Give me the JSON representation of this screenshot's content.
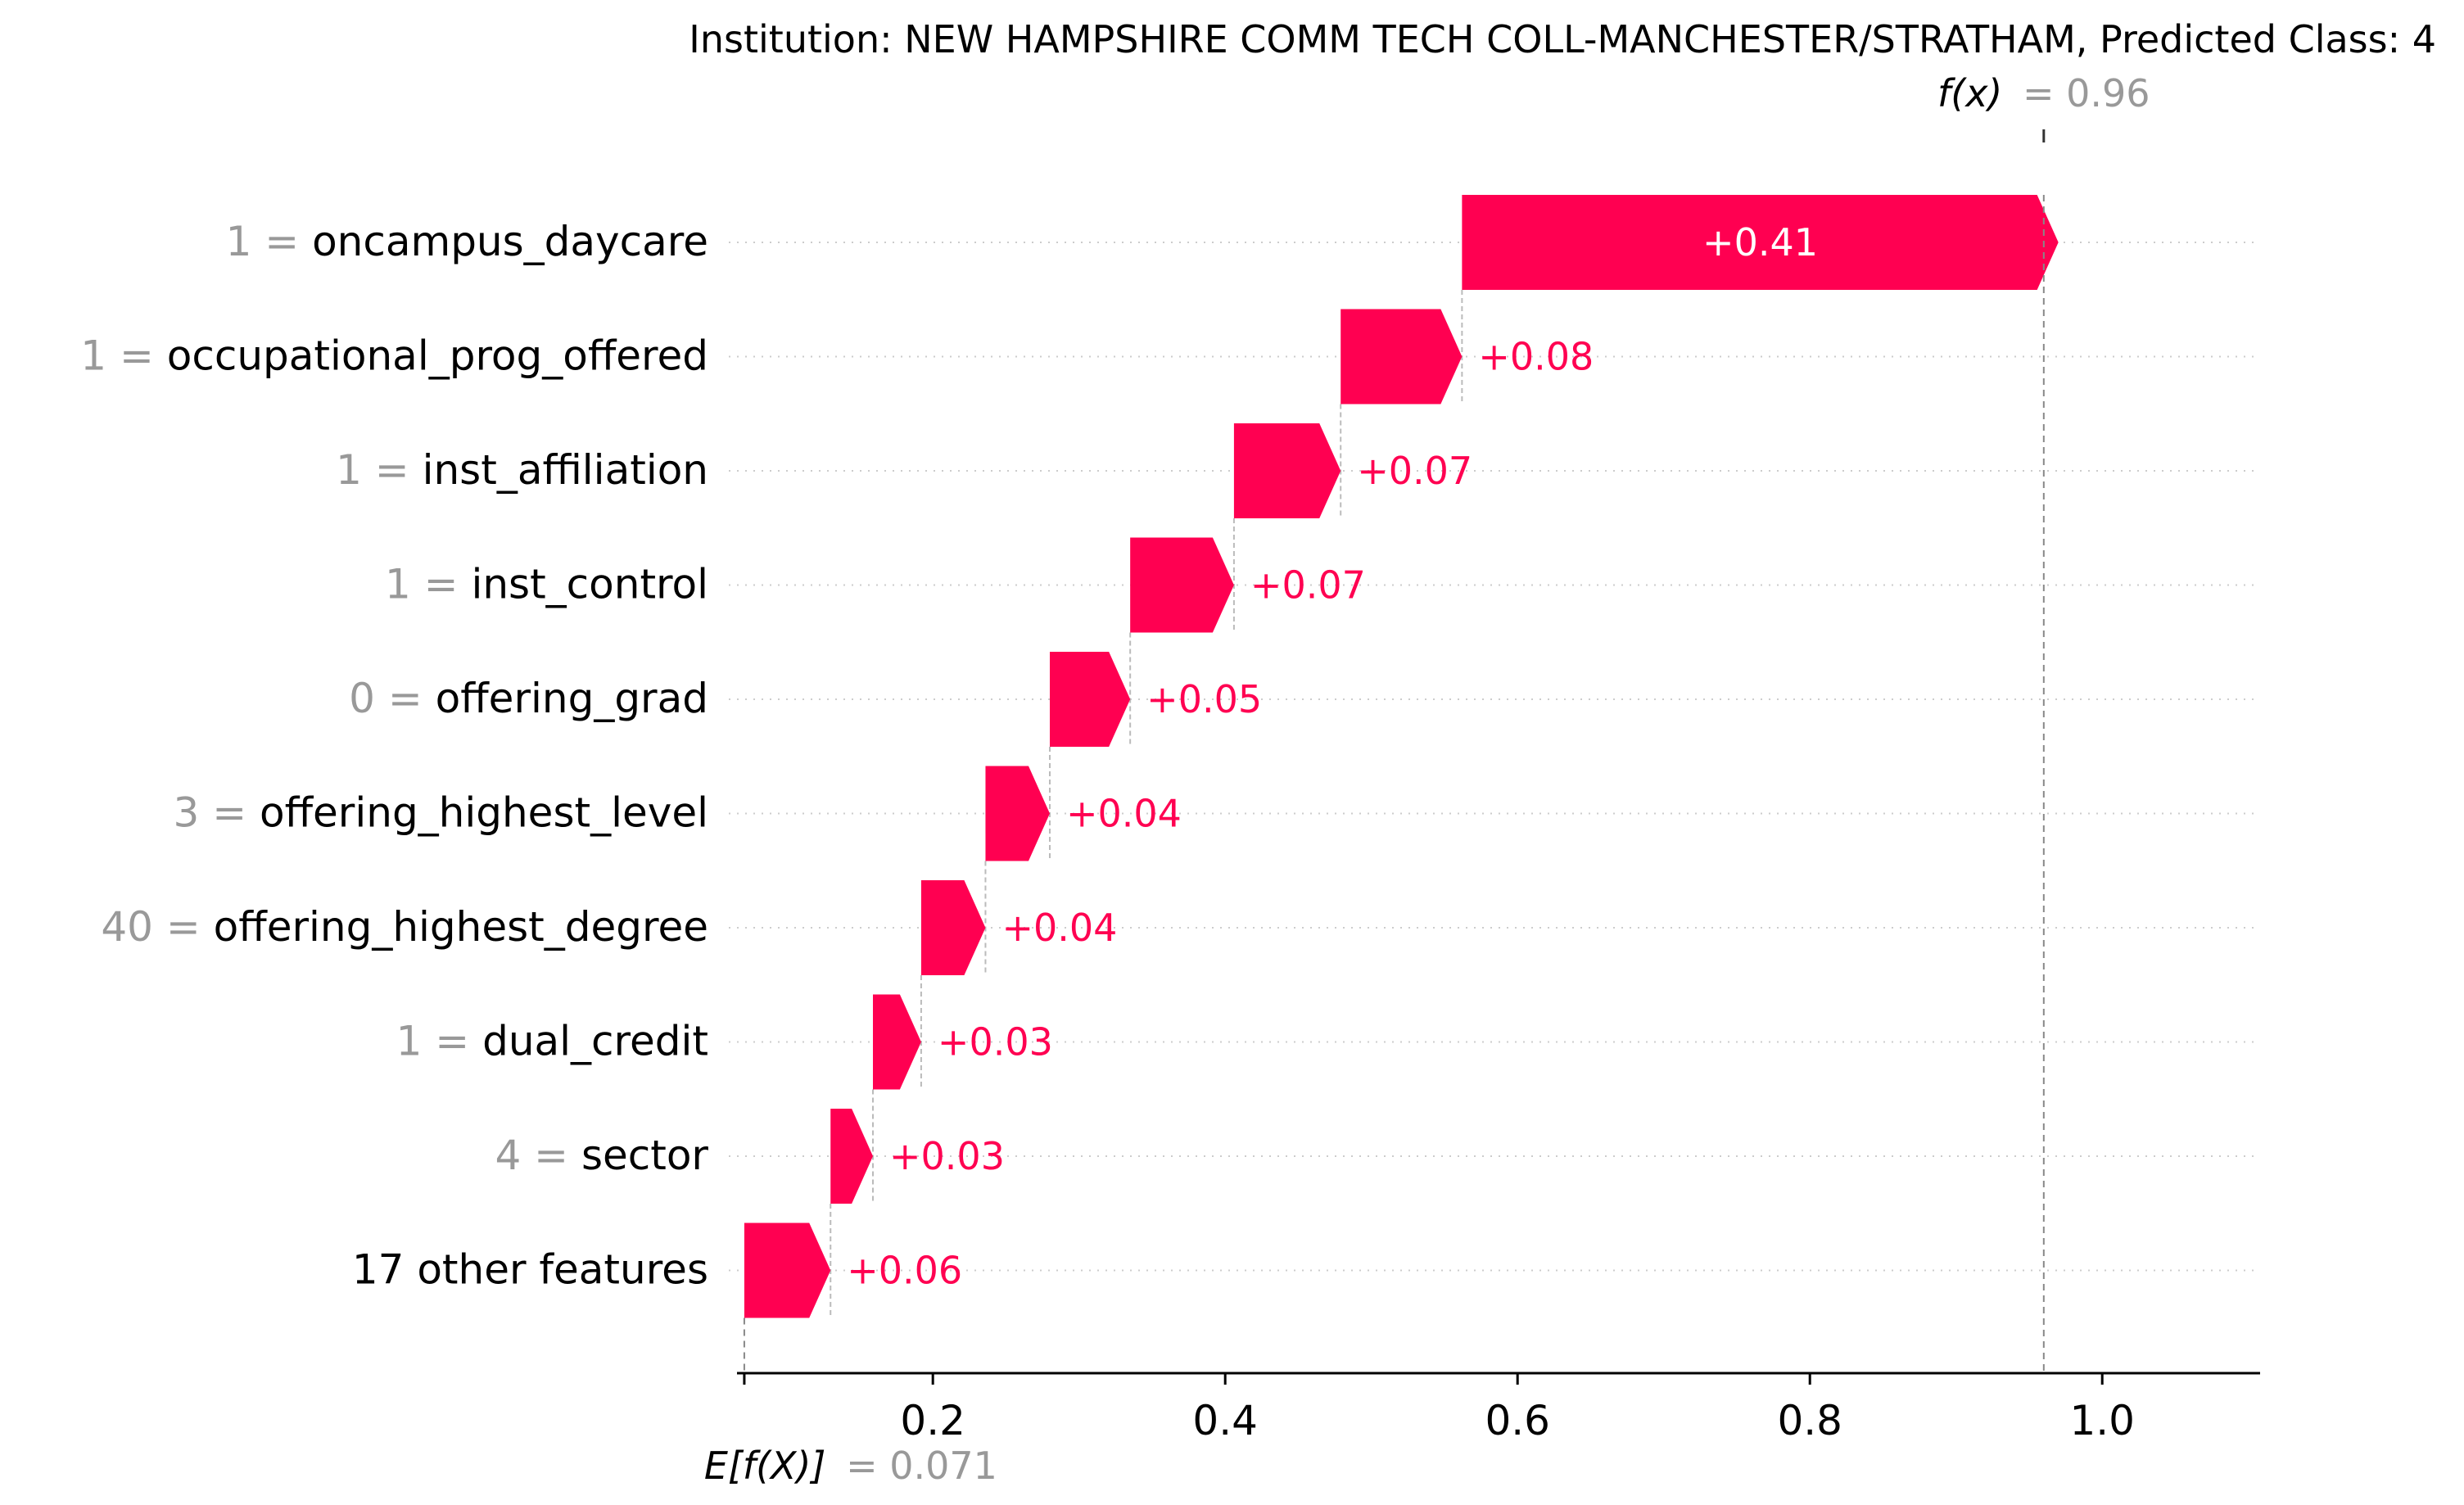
{
  "chart_data": {
    "type": "waterfall",
    "title": "Institution: NEW HAMPSHIRE COMM TECH COLL-MANCHESTER/STRATHAM, Predicted Class: 4",
    "base_value": 0.071,
    "base_label_prefix": "E[f(X)]",
    "base_label_value": "= 0.071",
    "output_value": 0.96,
    "output_label_prefix": "f(x)",
    "output_label_value": "= 0.96",
    "features": [
      {
        "value": "1",
        "name": "oncampus_daycare",
        "contribution": 0.408,
        "label": "+0.41"
      },
      {
        "value": "1",
        "name": "occupational_prog_offered",
        "contribution": 0.083,
        "label": "+0.08"
      },
      {
        "value": "1",
        "name": "inst_affiliation",
        "contribution": 0.073,
        "label": "+0.07"
      },
      {
        "value": "1",
        "name": "inst_control",
        "contribution": 0.071,
        "label": "+0.07"
      },
      {
        "value": "0",
        "name": "offering_grad",
        "contribution": 0.055,
        "label": "+0.05"
      },
      {
        "value": "3",
        "name": "offering_highest_level",
        "contribution": 0.044,
        "label": "+0.04"
      },
      {
        "value": "40",
        "name": "offering_highest_degree",
        "contribution": 0.044,
        "label": "+0.04"
      },
      {
        "value": "1",
        "name": "dual_credit",
        "contribution": 0.033,
        "label": "+0.03"
      },
      {
        "value": "4",
        "name": "sector",
        "contribution": 0.029,
        "label": "+0.03"
      },
      {
        "value": "",
        "name": "17 other features",
        "contribution": 0.059,
        "label": "+0.06"
      }
    ],
    "xaxis": {
      "ticks": [
        0.2,
        0.4,
        0.6,
        0.8,
        1.0
      ],
      "tick_labels": [
        "0.2",
        "0.4",
        "0.6",
        "0.8",
        "1.0"
      ],
      "range": [
        0.066,
        1.108
      ]
    },
    "grid": "dotted row guides",
    "colors": {
      "positive": "#ff0051",
      "positive_label": "#ff0051",
      "inside_label": "#ffffff",
      "feature_value": "#999999",
      "feature_name": "#000000",
      "guide_line": "#bbbbbb",
      "axis": "#000000"
    }
  }
}
